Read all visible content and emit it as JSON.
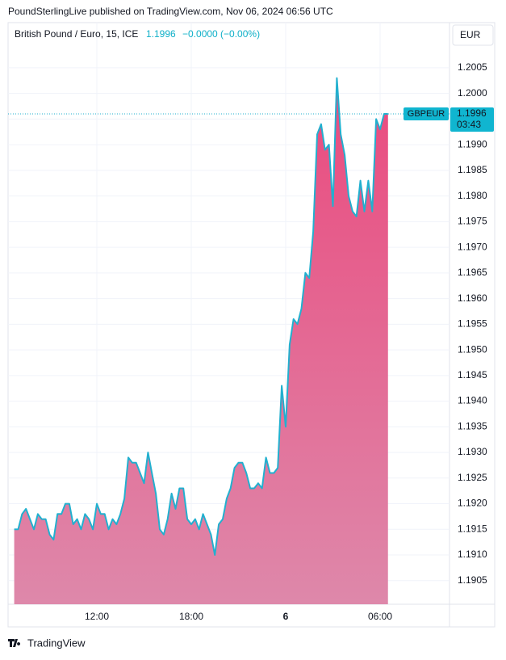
{
  "page": {
    "published": "PoundSterlingLive published on TradingView.com, Nov 06, 2024 06:56 UTC",
    "brand": "TradingView",
    "currency": "EUR"
  },
  "header": {
    "title": "British Pound / Euro, 15, ICE",
    "price": 1.1996,
    "change": "−0.0000 (−0.00%)"
  },
  "price_tag": {
    "symbol": "GBPEUR",
    "price": 1.1996,
    "countdown": "03:43"
  },
  "chart_data": {
    "type": "area",
    "color": "#22b0cf",
    "fill_top": "#ea4a7e",
    "fill_bottom": "#de88aa",
    "grid": true,
    "x": [
      6.75,
      7,
      7.25,
      7.5,
      7.75,
      8,
      8.25,
      8.5,
      8.75,
      9,
      9.25,
      9.5,
      9.75,
      10,
      10.25,
      10.5,
      10.75,
      11,
      11.25,
      11.5,
      11.75,
      12,
      12.25,
      12.5,
      12.75,
      13,
      13.25,
      13.5,
      13.75,
      14,
      14.25,
      14.5,
      14.75,
      15,
      15.25,
      15.5,
      15.75,
      16,
      16.25,
      16.5,
      16.75,
      17,
      17.25,
      17.5,
      17.75,
      18,
      18.25,
      18.5,
      18.75,
      19,
      19.25,
      19.5,
      19.75,
      20,
      20.25,
      20.5,
      20.75,
      21,
      21.25,
      21.5,
      21.75,
      22,
      22.25,
      22.5,
      22.75,
      23,
      23.25,
      23.5,
      23.75,
      24,
      24.25,
      24.5,
      24.75,
      25,
      25.25,
      25.5,
      25.75,
      26,
      26.25,
      26.5,
      26.75,
      27,
      27.25,
      27.5,
      27.75,
      28,
      28.25,
      28.5,
      28.75,
      29,
      29.25,
      29.5,
      29.75,
      30,
      30.25,
      30.5
    ],
    "values": [
      1.1915,
      1.1915,
      1.1918,
      1.1919,
      1.1917,
      1.1915,
      1.1918,
      1.1917,
      1.1917,
      1.1914,
      1.1913,
      1.1918,
      1.1918,
      1.192,
      1.192,
      1.1916,
      1.1917,
      1.1915,
      1.1918,
      1.1917,
      1.1915,
      1.192,
      1.1918,
      1.1918,
      1.1915,
      1.1917,
      1.1916,
      1.1918,
      1.1921,
      1.1929,
      1.1928,
      1.1928,
      1.1926,
      1.1924,
      1.193,
      1.1926,
      1.1922,
      1.1915,
      1.1914,
      1.1917,
      1.1922,
      1.1919,
      1.1923,
      1.1923,
      1.1917,
      1.1916,
      1.1917,
      1.1915,
      1.1918,
      1.1916,
      1.1914,
      1.191,
      1.1916,
      1.1917,
      1.1921,
      1.1923,
      1.1927,
      1.1928,
      1.1928,
      1.1926,
      1.1923,
      1.1923,
      1.1924,
      1.1923,
      1.1929,
      1.1926,
      1.1926,
      1.1927,
      1.1943,
      1.1935,
      1.1951,
      1.1956,
      1.1955,
      1.1958,
      1.1965,
      1.1964,
      1.1973,
      1.1992,
      1.1994,
      1.1989,
      1.199,
      1.1978,
      1.2003,
      1.1992,
      1.1988,
      1.198,
      1.1977,
      1.1976,
      1.1983,
      1.1977,
      1.1983,
      1.1977,
      1.1995,
      1.1993,
      1.1996,
      1.1996
    ],
    "xlim": [
      6.36,
      34.41
    ],
    "xticks": [
      {
        "value": 12,
        "label": "12:00"
      },
      {
        "value": 18,
        "label": "18:00"
      },
      {
        "value": 24,
        "label": "6"
      },
      {
        "value": 30,
        "label": "06:00"
      }
    ],
    "ylim": [
      1.19004,
      1.20138
    ],
    "yticks": [
      1.1905,
      {
        "value": 1.191,
        "label": "1.1910"
      },
      1.1915,
      {
        "value": 1.192,
        "label": "1.1920"
      },
      1.1925,
      {
        "value": 1.193,
        "label": "1.1930"
      },
      1.1935,
      {
        "value": 1.194,
        "label": "1.1940"
      },
      1.1945,
      {
        "value": 1.195,
        "label": "1.1950"
      },
      1.1955,
      {
        "value": 1.196,
        "label": "1.1960"
      },
      1.1965,
      {
        "value": 1.197,
        "label": "1.1970"
      },
      1.1975,
      {
        "value": 1.198,
        "label": "1.1980"
      },
      1.1985,
      {
        "value": 1.199,
        "label": "1.1990"
      },
      1.1995,
      {
        "value": 1.2,
        "label": "1.2000"
      },
      1.2005
    ]
  }
}
